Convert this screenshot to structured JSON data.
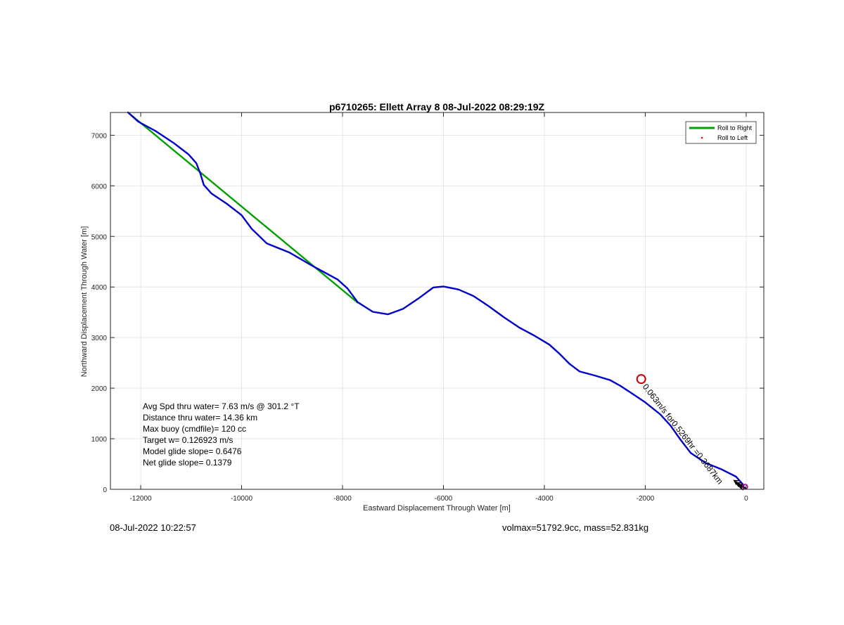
{
  "footer": {
    "timestamp": "08-Jul-2022 10:22:57",
    "params": "volmax=51792.9cc, mass=52.831kg"
  },
  "chart_data": {
    "type": "line",
    "title": "p6710265: Ellett Array 8 08-Jul-2022 08:29:19Z",
    "xlabel": "Eastward Displacement Through Water [m]",
    "ylabel": "Northward Displacement Through Water [m]",
    "xlim": [
      -12600,
      350
    ],
    "ylim": [
      0,
      7450
    ],
    "xticks": [
      -12000,
      -10000,
      -8000,
      -6000,
      -4000,
      -2000,
      0
    ],
    "yticks": [
      0,
      1000,
      2000,
      3000,
      4000,
      5000,
      6000,
      7000
    ],
    "grid": true,
    "legend": {
      "placement": "top-right",
      "entries": [
        {
          "label": "Roll to Right",
          "color": "#00a000",
          "marker": "line"
        },
        {
          "label": "Roll to Left",
          "color": "#ff0000",
          "marker": "dot"
        }
      ]
    },
    "series": [
      {
        "color": "#00a000",
        "x": [
          -12250,
          -7700
        ],
        "y": [
          7450,
          3690
        ]
      },
      {
        "color": "#0000c8",
        "x": [
          -12250,
          -12050,
          -11700,
          -11350,
          -11050,
          -10900,
          -10820,
          -10750,
          -10600,
          -10300,
          -10000,
          -9800,
          -9500,
          -9050,
          -8600,
          -8100,
          -7900,
          -7700,
          -7400,
          -7100,
          -6800,
          -6500,
          -6200,
          -6000,
          -5700,
          -5400,
          -5100,
          -4800,
          -4500,
          -4200,
          -3900,
          -3700,
          -3500,
          -3300,
          -3000,
          -2700,
          -2500,
          -2300,
          -2000,
          -1700,
          -1500,
          -1300,
          -1100,
          -800,
          -500,
          -200,
          -50
        ],
        "y": [
          7450,
          7270,
          7080,
          6850,
          6620,
          6450,
          6250,
          6020,
          5850,
          5650,
          5420,
          5150,
          4860,
          4680,
          4420,
          4150,
          3970,
          3700,
          3510,
          3460,
          3570,
          3770,
          3990,
          4010,
          3950,
          3820,
          3620,
          3400,
          3200,
          3040,
          2860,
          2680,
          2480,
          2330,
          2250,
          2160,
          2050,
          1920,
          1720,
          1480,
          1260,
          980,
          720,
          520,
          400,
          250,
          80
        ]
      }
    ],
    "annotations": [
      {
        "text": "Avg Spd thru water=  7.63 m/s @ 301.2 °T"
      },
      {
        "text": "Distance thru water= 14.36 km"
      },
      {
        "text": "Max buoy (cmdfile)= 120 cc"
      },
      {
        "text": "Target w= 0.126923 m/s"
      },
      {
        "text": "Model glide slope= 0.6476"
      },
      {
        "text": "Net glide slope= 0.1379"
      }
    ],
    "rotated_label": {
      "text": "0.063m/s for0.5269hr =0.3687km",
      "angle_deg": 52,
      "x": -2060,
      "y": 2030
    },
    "marker_circle": {
      "x": -2080,
      "y": 2180,
      "color": "#c00000"
    },
    "end_marker": {
      "x": -20,
      "y": 50,
      "color": "#b000b0"
    },
    "current_arrows": {
      "color": "#000000",
      "x": [
        -130,
        -160,
        -200,
        -240
      ],
      "y": [
        50,
        90,
        130,
        175
      ]
    }
  }
}
